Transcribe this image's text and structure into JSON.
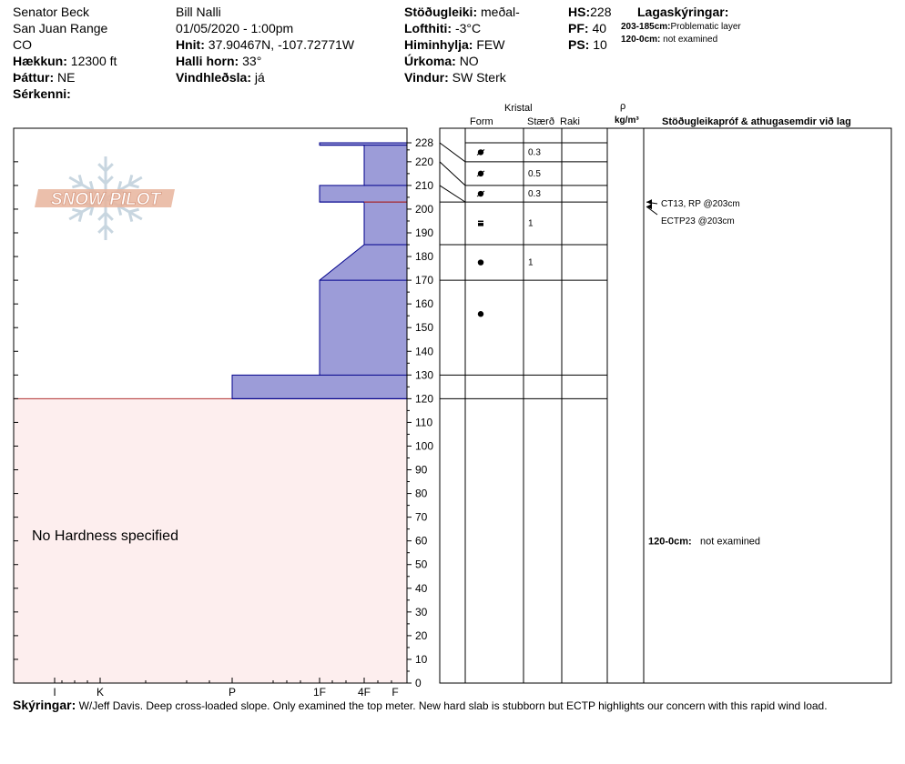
{
  "header": {
    "location_name": "Senator Beck",
    "range": "San Juan Range",
    "state": "CO",
    "elevation_label": "Hækkun:",
    "elevation_value": "12300 ft",
    "aspect_label": "Þáttur:",
    "aspect_value": "NE",
    "features_label": "Sérkenni:",
    "features_value": "",
    "observer": "Bill Nalli",
    "datetime": "01/05/2020 - 1:00pm",
    "coords_label": "Hnit:",
    "coords_value": "37.90467N, -107.72771W",
    "slope_label": "Halli horn:",
    "slope_value": "33°",
    "wind_loading_label": "Vindhleðsla:",
    "wind_loading_value": "já",
    "stability_label": "Stöðugleiki:",
    "stability_value": "meðal-",
    "air_temp_label": "Lofthiti:",
    "air_temp_value": "-3°C",
    "sky_label": "Himinhylja:",
    "sky_value": "FEW",
    "precip_label": "Úrkoma:",
    "precip_value": "NO",
    "wind_label": "Vindur:",
    "wind_value": "SW Sterk",
    "hs_label": "HS:",
    "hs_value": "228",
    "pf_label": "PF:",
    "pf_value": "40",
    "ps_label": "PS:",
    "ps_value": "10",
    "legend_title": "Lagaskýringar:",
    "legend_items": [
      {
        "key": "203-185cm:",
        "text": "Problematic layer"
      },
      {
        "key": "120-0cm:",
        "text": "not examined"
      }
    ]
  },
  "columns": {
    "kristal": "Kristal",
    "form": "Form",
    "size": "Stærð",
    "moisture": "Raki",
    "rho": "ρ",
    "density_unit": "kg/m³",
    "tests": "Stöðugleikapróf & athugasemdir við lag"
  },
  "logo_text": "SNOW PILOT",
  "no_hardness_text": "No Hardness specified",
  "comments_label": "Skýringar:",
  "comments_text": "W/Jeff Davis. Deep cross-loaded slope. Only examined the top meter. New hard slab is stubborn but ECTP highlights our concern with this rapid wind load.",
  "colors": {
    "hardness_fill": "#9c9cd8",
    "hardness_stroke": "#00008b",
    "unexamined_fill": "#fdeeee",
    "unexamined_line": "#b03030",
    "logo_orange": "#e8b49c",
    "logo_blue": "#c8d6e0"
  },
  "chart_data": {
    "type": "snow_profile",
    "y_axis": {
      "unit": "cm",
      "range": [
        0,
        228
      ],
      "ticks": [
        0,
        10,
        20,
        30,
        40,
        50,
        60,
        70,
        80,
        90,
        100,
        110,
        120,
        130,
        140,
        150,
        160,
        170,
        180,
        190,
        200,
        210,
        220,
        228
      ]
    },
    "hardness_scale": {
      "labels": [
        "I",
        "K",
        "P",
        "1F",
        "4F",
        "F"
      ],
      "values": [
        5,
        4,
        3,
        2,
        1.5,
        1
      ]
    },
    "hardness_layers": [
      {
        "top": 228,
        "bottom": 227,
        "hardness": "1F"
      },
      {
        "top": 227,
        "bottom": 210,
        "hardness": "4F"
      },
      {
        "top": 210,
        "bottom": 203,
        "hardness": "1F"
      },
      {
        "top": 203,
        "bottom": 185,
        "hardness": "4F"
      },
      {
        "top": 185,
        "bottom": 170,
        "hardness": "4F to 1F"
      },
      {
        "top": 170,
        "bottom": 130,
        "hardness": "1F"
      },
      {
        "top": 130,
        "bottom": 120,
        "hardness": "P"
      }
    ],
    "problematic_layer": {
      "top": 203,
      "bottom": 185
    },
    "unexamined": {
      "top": 120,
      "bottom": 0
    },
    "layer_boundaries": [
      228,
      220,
      210,
      203,
      185,
      170,
      130,
      120
    ],
    "grains": [
      {
        "top": 228,
        "bottom": 220,
        "form": "decomposing",
        "size": "0.3"
      },
      {
        "top": 220,
        "bottom": 210,
        "form": "decomposing",
        "size": "0.5"
      },
      {
        "top": 210,
        "bottom": 203,
        "form": "decomposing",
        "size": "0.3"
      },
      {
        "top": 203,
        "bottom": 185,
        "form": "rounded-faceted",
        "size": "1"
      },
      {
        "top": 185,
        "bottom": 170,
        "form": "rounded",
        "size": "1"
      },
      {
        "top": 170,
        "bottom": 130,
        "form": "rounded",
        "size": ""
      }
    ],
    "tests": [
      {
        "depth": 203,
        "text": "CT13, RP @203cm"
      },
      {
        "depth": 203,
        "text": "ECTP23 @203cm"
      }
    ],
    "layer_comments": [
      {
        "depth": 60,
        "key": "120-0cm:",
        "text": "not examined"
      }
    ]
  }
}
